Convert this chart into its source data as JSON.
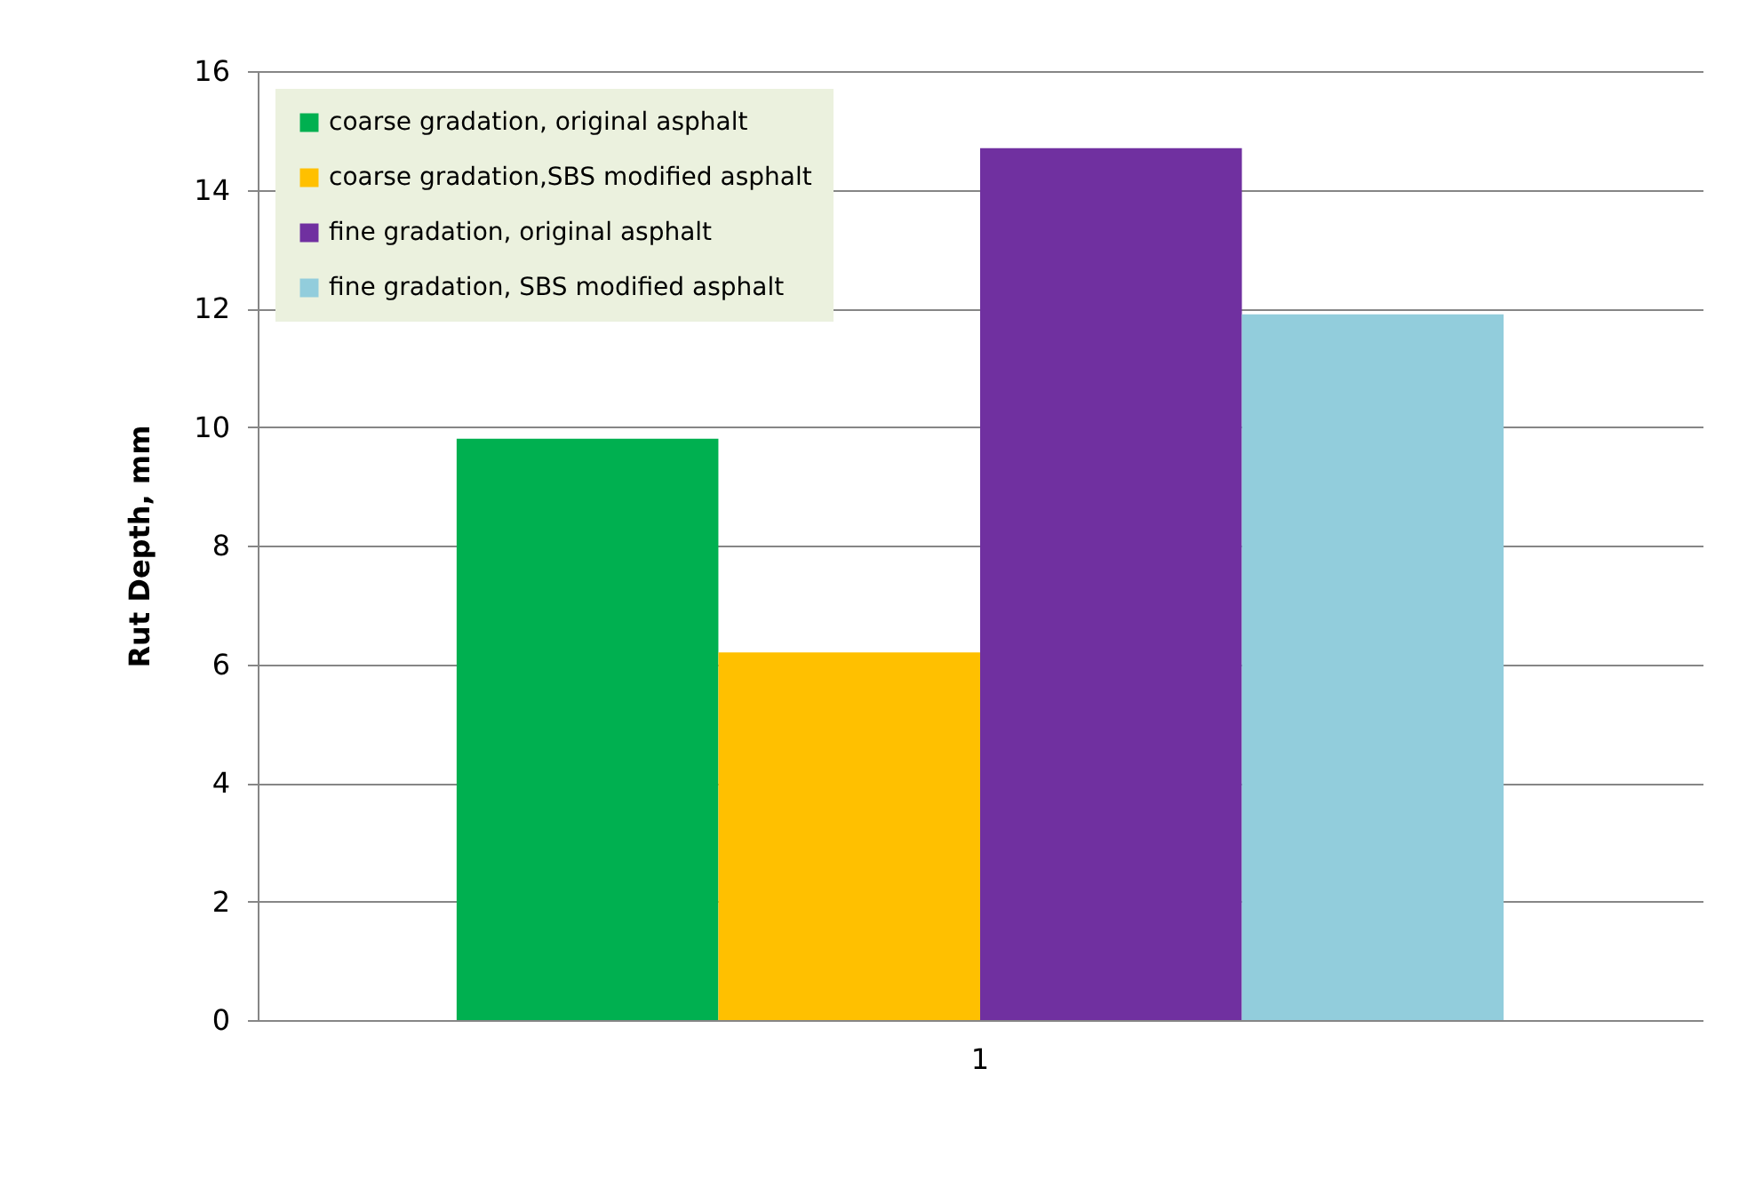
{
  "chart_data": {
    "type": "bar",
    "ylabel": "Rut Depth, mm",
    "categories": [
      "1"
    ],
    "series": [
      {
        "name": "coarse gradation, original asphalt",
        "color": "#00b050",
        "values": [
          9.8
        ]
      },
      {
        "name": "coarse gradation,SBS modified asphalt",
        "color": "#ffc000",
        "values": [
          6.2
        ]
      },
      {
        "name": "fine gradation, original asphalt",
        "color": "#7030a0",
        "values": [
          14.7
        ]
      },
      {
        "name": "fine gradation, SBS modified asphalt",
        "color": "#92cddc",
        "values": [
          11.9
        ]
      }
    ],
    "ylim": [
      0,
      16
    ],
    "yticks": [
      0,
      2,
      4,
      6,
      8,
      10,
      12,
      14,
      16
    ],
    "grid": "y",
    "legend": "top left"
  }
}
